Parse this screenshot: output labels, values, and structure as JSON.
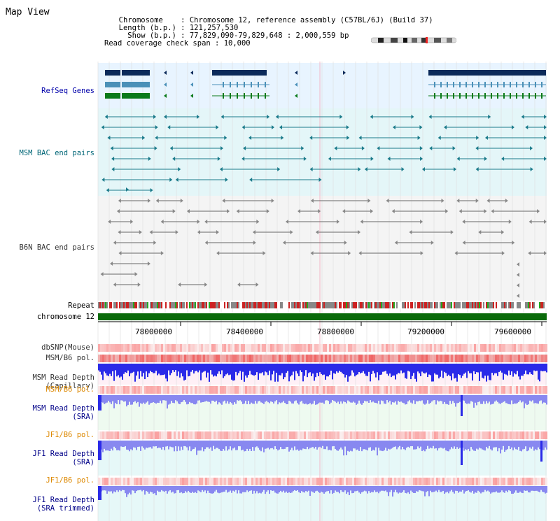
{
  "title": "Map View",
  "info": {
    "chromosome_key": "Chromosome",
    "chromosome_value": "Chromosome 12, reference assembly (C57BL/6J) (Build 37)",
    "length_key": "Length (b.p.)",
    "length_value": "121,257,530",
    "show_key": "Show (b.p.)",
    "show_value": "77,829,090-79,829,648 : 2,000,559 bp",
    "coverage_key": "Read coverage check span",
    "coverage_value": "10,000",
    "sep": ":"
  },
  "tracks": {
    "refseq": "RefSeq Genes",
    "msm_bac": "MSM BAC end pairs",
    "b6n_bac": "B6N BAC end pairs",
    "repeat": "Repeat",
    "chromosome": "chromosome 12",
    "dbsnp": "dbSNP(Mouse)",
    "msm_b6_pol": "MSM/B6 pol.",
    "msm_read_depth_cap_1": "MSM Read Depth",
    "msm_read_depth_cap_2": "(Capillary)",
    "msm_b6_pol_2": "MSM/B6 pol.",
    "msm_read_depth_sra_1": "MSM Read Depth",
    "msm_read_depth_sra_2": "(SRA)",
    "jf1_b6_pol": "JF1/B6 pol.",
    "jf1_read_depth_1": "JF1 Read Depth",
    "jf1_read_depth_2": "(SRA)",
    "jf1_b6_pol_2": "JF1/B6 pol.",
    "jf1_trim_1": "JF1 Read Depth",
    "jf1_trim_2": "(SRA trimmed)"
  },
  "axis_ticks": [
    "78000000",
    "78400000",
    "78800000",
    "79200000",
    "79600000"
  ],
  "colors": {
    "refseq_dark": "#0b2a5a",
    "refseq_mid": "#4a90b8",
    "refseq_green": "#0a7a1a",
    "msm_bac": "#1a7a8a",
    "b6n_bac": "#666666",
    "chromosome_bar": "#0a6a0a",
    "depth_blue": "#2a2ae8",
    "depth_light": "#8888f0",
    "pol_red": "#ee3333"
  }
}
